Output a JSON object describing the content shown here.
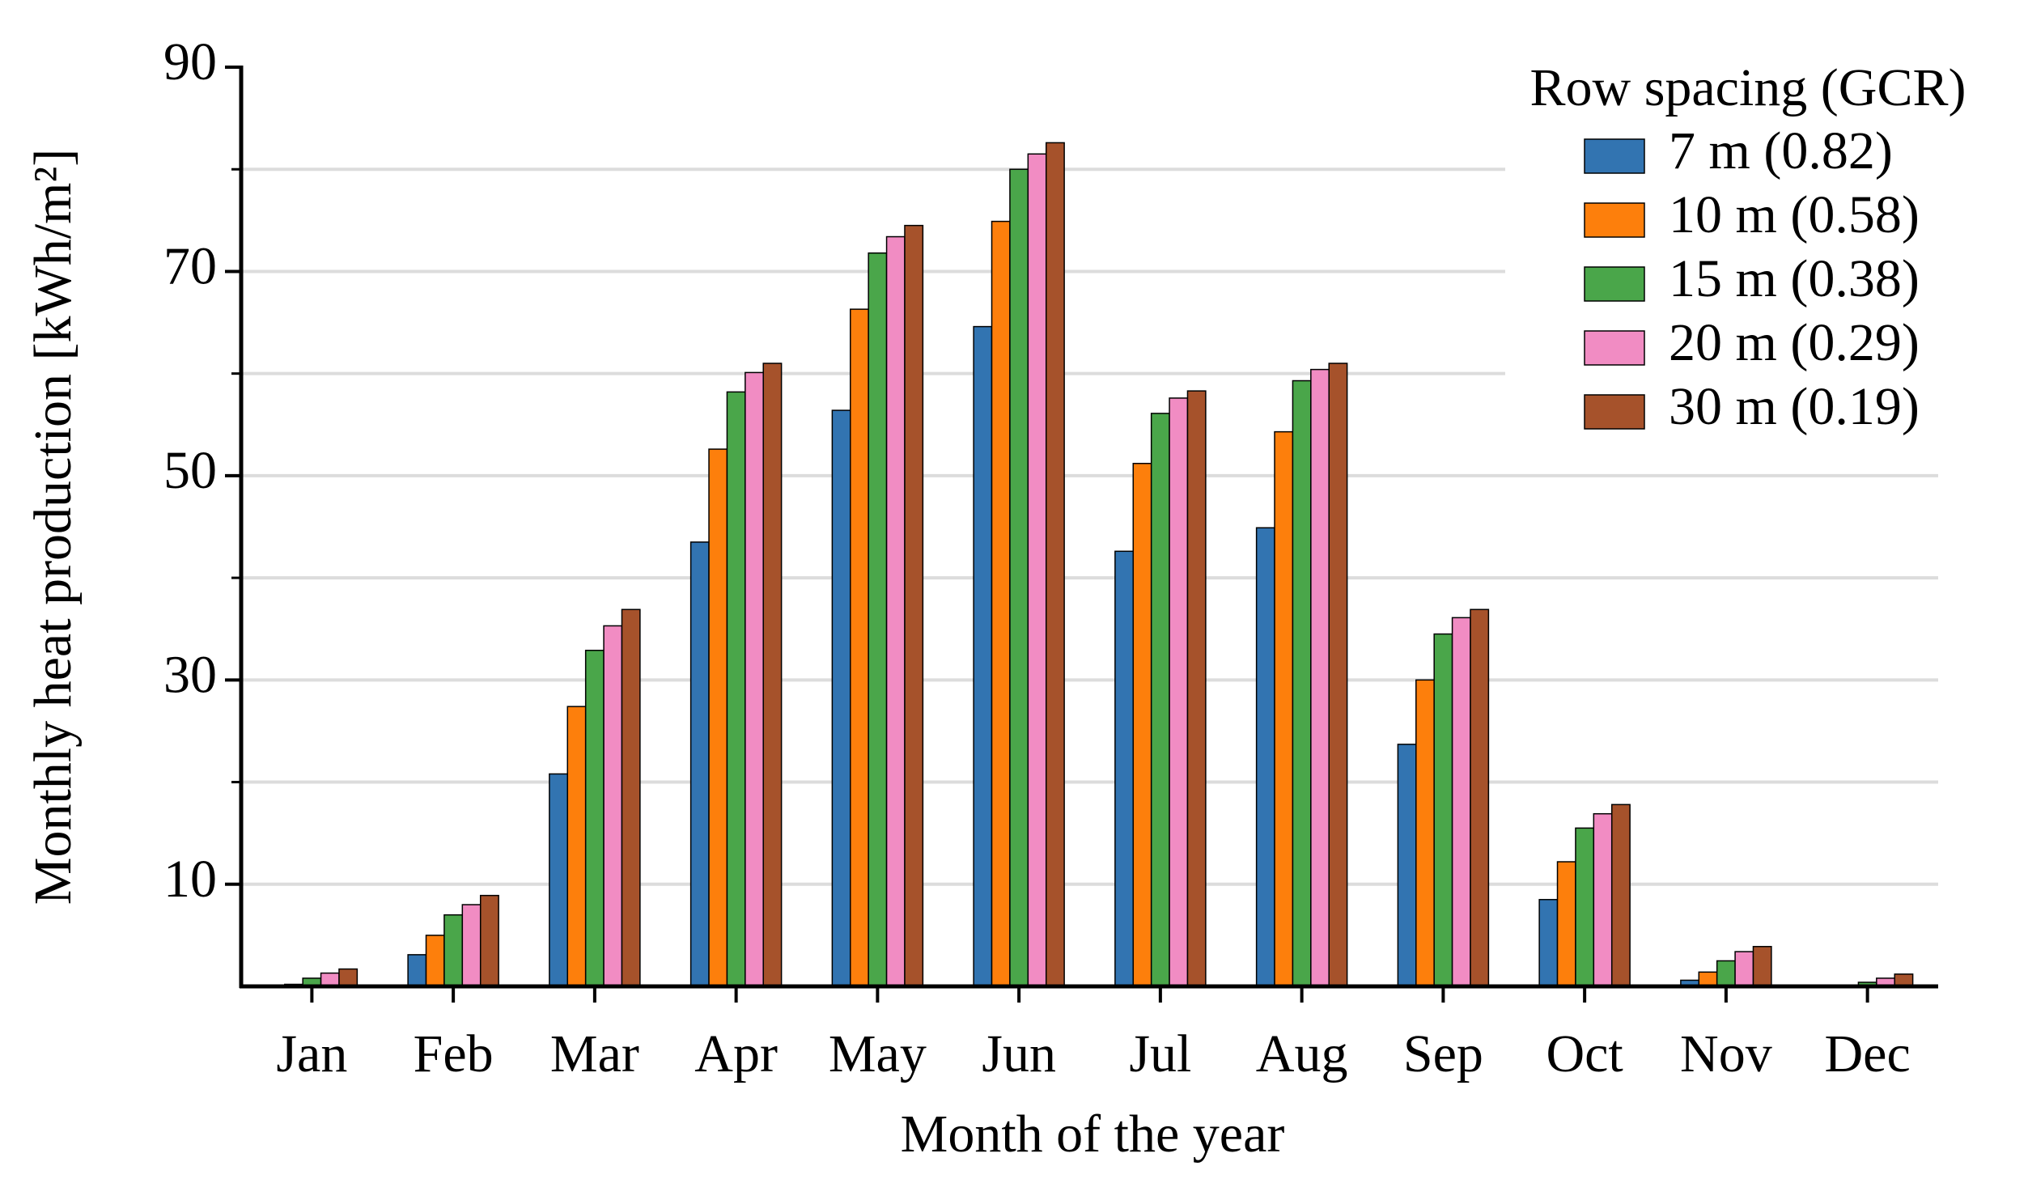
{
  "chart_data": {
    "type": "bar",
    "xlabel": "Month of the year",
    "ylabel": "Monthly heat production [kWh/m²]",
    "categories": [
      "Jan",
      "Feb",
      "Mar",
      "Apr",
      "May",
      "Jun",
      "Jul",
      "Aug",
      "Sep",
      "Oct",
      "Nov",
      "Dec"
    ],
    "series": [
      {
        "name": "7 m (0.82)",
        "color": "#3274b1",
        "values": [
          0,
          3.1,
          20.8,
          43.5,
          56.4,
          64.6,
          42.6,
          44.9,
          23.7,
          8.5,
          0.6,
          0
        ]
      },
      {
        "name": "10 m (0.58)",
        "color": "#fd7f0c",
        "values": [
          0.2,
          5.0,
          27.4,
          52.6,
          66.3,
          74.9,
          51.2,
          54.3,
          30.0,
          12.2,
          1.4,
          0.1
        ]
      },
      {
        "name": "15 m (0.38)",
        "color": "#4aa64a",
        "values": [
          0.8,
          7.0,
          32.9,
          58.2,
          71.8,
          80.0,
          56.1,
          59.3,
          34.5,
          15.5,
          2.5,
          0.4
        ]
      },
      {
        "name": "20 m (0.29)",
        "color": "#f18cc3",
        "values": [
          1.3,
          8.0,
          35.3,
          60.1,
          73.4,
          81.5,
          57.6,
          60.4,
          36.1,
          16.9,
          3.4,
          0.8
        ]
      },
      {
        "name": "30 m (0.19)",
        "color": "#a6522b",
        "values": [
          1.7,
          8.9,
          36.9,
          61.0,
          74.5,
          82.6,
          58.3,
          61.0,
          36.9,
          17.8,
          3.9,
          1.2
        ]
      }
    ],
    "legend_title": "Row spacing (GCR)",
    "legend_position": "upper right",
    "ylim": [
      0,
      90
    ],
    "yticks": [
      10,
      30,
      50,
      70,
      90
    ],
    "minor_yticks": [
      20,
      40,
      60,
      80
    ],
    "grid": true
  }
}
